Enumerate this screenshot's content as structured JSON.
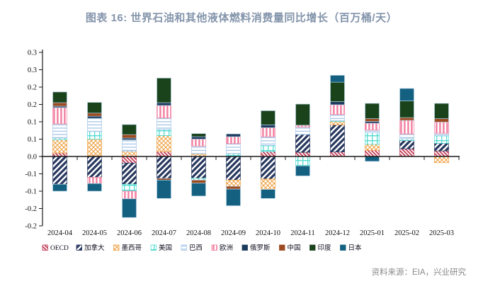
{
  "header": {
    "title": "图表 16: 世界石油和其他液体燃料消费量同比增长（百万桶/天）"
  },
  "footer": {
    "source": "资料来源：EIA，兴业研究"
  },
  "chart_data": {
    "type": "bar",
    "stacked": true,
    "title": "世界石油和其他液体燃料消费量同比增长",
    "unit": "百万桶/天",
    "legend_position": "bottom",
    "grid": false,
    "categories": [
      "2024-04",
      "2024-05",
      "2024-06",
      "2024-07",
      "2024-08",
      "2024-09",
      "2024-10",
      "2024-11",
      "2024-12",
      "2025-01",
      "2025-02",
      "2025-03"
    ],
    "y_axis": {
      "min": -0.2,
      "max": 0.3,
      "tick_step": 0.05,
      "tick_values": [
        0.3,
        0.25,
        0.2,
        0.15,
        0.1,
        0.05,
        0.0,
        -0.05,
        -0.1,
        -0.15,
        -0.2
      ],
      "tick_labels": [
        "0.3",
        "0.3",
        "0.2",
        "0.2",
        "0.1",
        "0.1",
        "0.0",
        "-0.1",
        "-0.1",
        "-0.2",
        "-0.2"
      ]
    },
    "series": [
      {
        "name": "OECD",
        "color": "#C23B55",
        "pattern": "diag-thin",
        "values": [
          0.01,
          0.002,
          -0.019,
          0.014,
          0.0,
          0.0,
          0.014,
          0.012,
          0.013,
          0.018,
          0.022,
          0.016
        ]
      },
      {
        "name": "加拿大",
        "color": "#27375E",
        "pattern": "diag-wide",
        "values": [
          -0.08,
          -0.06,
          -0.061,
          -0.063,
          -0.063,
          -0.068,
          -0.065,
          0.051,
          0.078,
          0.0,
          0.024,
          0.022
        ]
      },
      {
        "name": "墨西哥",
        "color": "#EFA143",
        "pattern": "crosshatch",
        "values": [
          0.038,
          0.048,
          0.015,
          0.046,
          0.008,
          -0.018,
          -0.03,
          0.0,
          0.01,
          0.017,
          0.0,
          -0.018
        ]
      },
      {
        "name": "美国",
        "color": "#52DBD2",
        "pattern": "grid",
        "values": [
          0.005,
          0.022,
          -0.02,
          0.018,
          -0.005,
          0.008,
          0.018,
          -0.027,
          0.002,
          0.033,
          0.005,
          0.022
        ]
      },
      {
        "name": "巴西",
        "color": "#A7C6E8",
        "pattern": "hlines",
        "values": [
          0.041,
          0.038,
          0.033,
          0.033,
          0.022,
          0.029,
          0.025,
          0.022,
          0.018,
          0.008,
          0.014,
          0.007
        ]
      },
      {
        "name": "欧洲",
        "color": "#F27FA0",
        "pattern": "vlines",
        "values": [
          0.047,
          -0.018,
          -0.022,
          0.036,
          0.02,
          0.02,
          0.026,
          0.005,
          0.028,
          0.02,
          0.039,
          0.032
        ]
      },
      {
        "name": "俄罗斯",
        "color": "#1B3A5C",
        "pattern": null,
        "values": [
          0.004,
          0.006,
          0.005,
          0.008,
          0.007,
          0.008,
          0.008,
          0.0,
          0.009,
          0.005,
          0.0,
          0.0
        ]
      },
      {
        "name": "中国",
        "color": "#9E4A20",
        "pattern": null,
        "values": [
          0.01,
          0.009,
          0.01,
          -0.005,
          -0.009,
          -0.008,
          0.0,
          0.0,
          0.0,
          0.008,
          0.008,
          0.01
        ]
      },
      {
        "name": "印度",
        "color": "#1A431C",
        "pattern": null,
        "values": [
          0.031,
          0.031,
          0.029,
          0.071,
          0.009,
          0.0,
          0.041,
          0.061,
          0.056,
          0.044,
          0.048,
          0.044
        ]
      },
      {
        "name": "日本",
        "color": "#136080",
        "pattern": null,
        "values": [
          -0.02,
          -0.022,
          -0.054,
          -0.053,
          -0.037,
          -0.048,
          -0.026,
          -0.029,
          0.02,
          -0.014,
          0.036,
          0.0
        ]
      }
    ]
  }
}
